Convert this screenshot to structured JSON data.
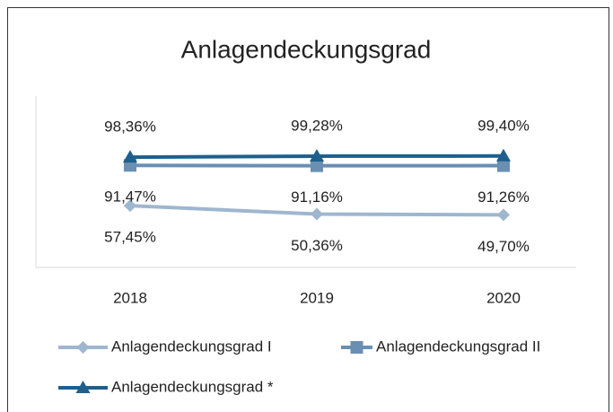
{
  "chart_data": {
    "type": "line",
    "title": "Anlagendeckungsgrad",
    "categories": [
      "2018",
      "2019",
      "2020"
    ],
    "series": [
      {
        "name": "Anlagendeckungsgrad I",
        "color": "#9fb6cf",
        "marker": "diamond",
        "label_position": "below",
        "values": [
          57.45,
          50.36,
          49.7
        ],
        "value_labels": [
          "57,45%",
          "50,36%",
          "49,70%"
        ]
      },
      {
        "name": "Anlagendeckungsgrad II",
        "color": "#6a8fb3",
        "marker": "square",
        "label_position": "below",
        "values": [
          91.47,
          91.16,
          91.26
        ],
        "value_labels": [
          "91,47%",
          "91,16%",
          "91,26%"
        ]
      },
      {
        "name": "Anlagendeckungsgrad *",
        "color": "#1f5f8b",
        "marker": "triangle",
        "label_position": "above",
        "values": [
          98.36,
          99.28,
          99.4
        ],
        "value_labels": [
          "98,36%",
          "99,28%",
          "99,40%"
        ]
      }
    ],
    "ylim": [
      0,
      150
    ],
    "grid": false,
    "legend": "bottom"
  }
}
